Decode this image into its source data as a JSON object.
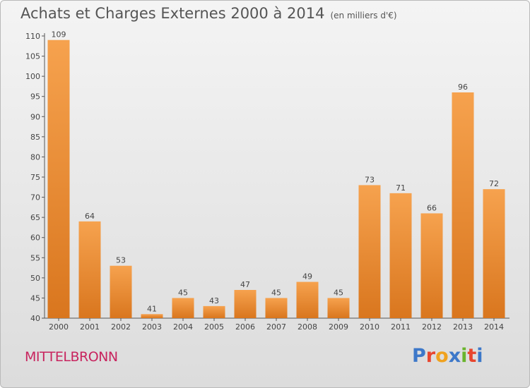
{
  "header": {
    "title": "Achats et Charges Externes 2000 à 2014",
    "subtitle": "(en milliers d'€)"
  },
  "footer": {
    "commune": "MITTELBRONN",
    "logo": "Proxiti"
  },
  "colors": {
    "bar_light": "#f6a24e",
    "bar_dark": "#d9761e",
    "commune": "#c8245e",
    "logo_letters": [
      "#3d78c9",
      "#e8462f",
      "#f0a21e",
      "#3d78c9",
      "#6ab42d",
      "#e8462f",
      "#3d78c9"
    ]
  },
  "chart_data": {
    "type": "bar",
    "title": "Achats et Charges Externes 2000 à 2014",
    "subtitle": "(en milliers d'€)",
    "categories": [
      "2000",
      "2001",
      "2002",
      "2003",
      "2004",
      "2005",
      "2006",
      "2007",
      "2008",
      "2009",
      "2010",
      "2011",
      "2012",
      "2013",
      "2014"
    ],
    "values": [
      109,
      64,
      53,
      41,
      45,
      43,
      47,
      45,
      49,
      45,
      73,
      71,
      66,
      96,
      72
    ],
    "ylim": [
      40,
      110
    ],
    "yticks": [
      40,
      45,
      50,
      55,
      60,
      65,
      70,
      75,
      80,
      85,
      90,
      95,
      100,
      105,
      110
    ],
    "grid": false,
    "xlabel": "",
    "ylabel": ""
  }
}
